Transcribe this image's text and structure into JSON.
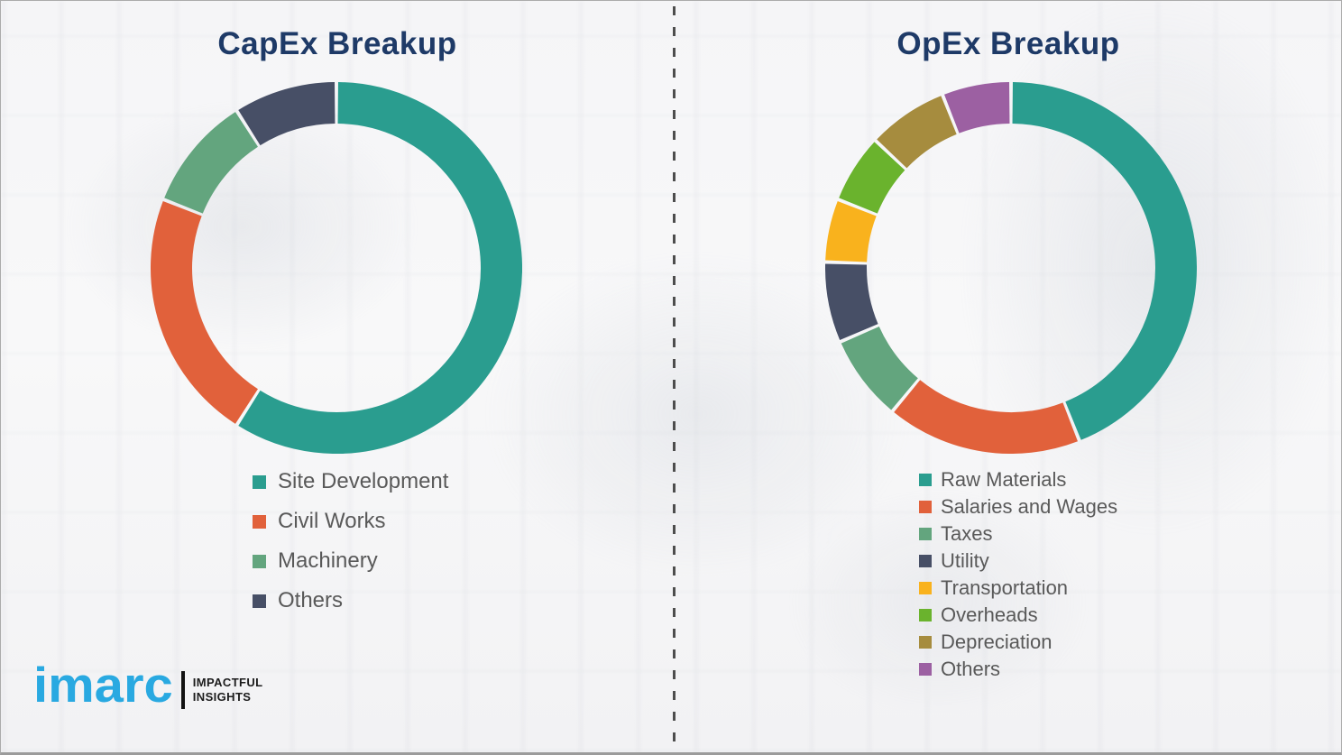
{
  "page": {
    "background_color": "#f5f5f7",
    "border_color": "#ababab",
    "divider_style": "vertical-dashed",
    "divider_color": "#4d4d4d"
  },
  "colors": {
    "title_navy": "#1e3a67",
    "legend_text": "#595959",
    "imarc_blue": "#29a9e1"
  },
  "chart_data": [
    {
      "type": "pie",
      "subtype": "donut",
      "title": "CapEx Breakup",
      "labels": [
        "Site Development",
        "Civil Works",
        "Machinery",
        "Others"
      ],
      "values": [
        59,
        22,
        10,
        9
      ],
      "colors": [
        "#2a9d8f",
        "#e1613b",
        "#63a57e",
        "#474f66"
      ],
      "start_angle_deg": 0,
      "direction": "clockwise",
      "data_labels_shown": false,
      "legend_position": "below"
    },
    {
      "type": "pie",
      "subtype": "donut",
      "title": "OpEx Breakup",
      "labels": [
        "Raw Materials",
        "Salaries and Wages",
        "Taxes",
        "Utility",
        "Transportation",
        "Overheads",
        "Depreciation",
        "Others"
      ],
      "values": [
        44,
        17,
        7.5,
        7,
        5.5,
        6,
        7,
        6
      ],
      "colors": [
        "#2a9d8f",
        "#e1613b",
        "#63a57e",
        "#474f66",
        "#f9b21d",
        "#6ab32d",
        "#a68c3e",
        "#9c60a2"
      ],
      "start_angle_deg": 0,
      "direction": "clockwise",
      "data_labels_shown": false,
      "legend_position": "below"
    }
  ],
  "branding": {
    "logo_text": "imarc",
    "tagline_line1": "IMPACTFUL",
    "tagline_line2": "INSIGHTS"
  }
}
